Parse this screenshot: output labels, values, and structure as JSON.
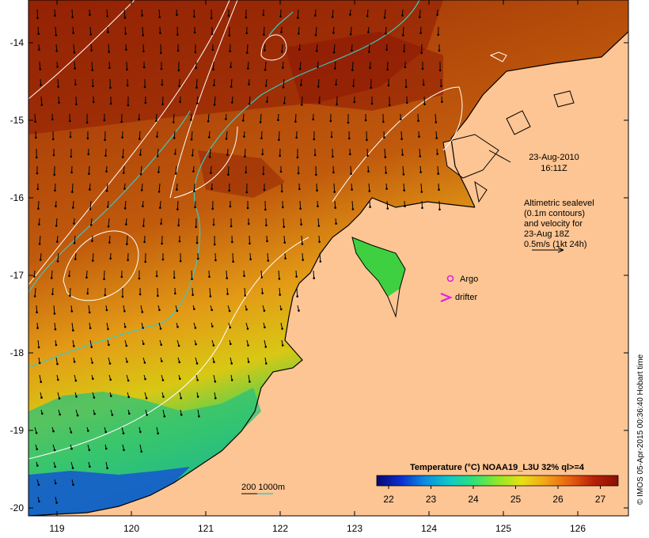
{
  "colors": {
    "land": "#fdc593",
    "colorbar_stops": [
      "#08086e",
      "#0a2ed0",
      "#0a8de0",
      "#12c8c8",
      "#2ee07a",
      "#8ee82a",
      "#e8e014",
      "#f2a418",
      "#e86010",
      "#b82008",
      "#8a1004"
    ]
  },
  "map": {
    "lon_ticks": [
      "119",
      "120",
      "121",
      "122",
      "123",
      "124",
      "125",
      "126"
    ],
    "lat_ticks": [
      "-14",
      "-15",
      "-16",
      "-17",
      "-18",
      "-19",
      "-20"
    ],
    "date_line1": "23-Aug-2010",
    "date_line2": "16:11Z",
    "legend_lines": [
      "Altimetric sealevel",
      "(0.1m contours)",
      "and velocity for",
      "23-Aug 18Z",
      "0.5m/s (1kt 24h)"
    ],
    "argo_label": "Argo",
    "drifter_label": "drifter",
    "scale_label": "200  1000m",
    "colorbar_title": "Temperature (°C) NOAA19_L3U 32% ql>=4",
    "colorbar_ticks": [
      "22",
      "23",
      "24",
      "25",
      "26",
      "27"
    ],
    "credit": "© IMOS 05-Apr-2015 00:36:40 Hobart time"
  }
}
